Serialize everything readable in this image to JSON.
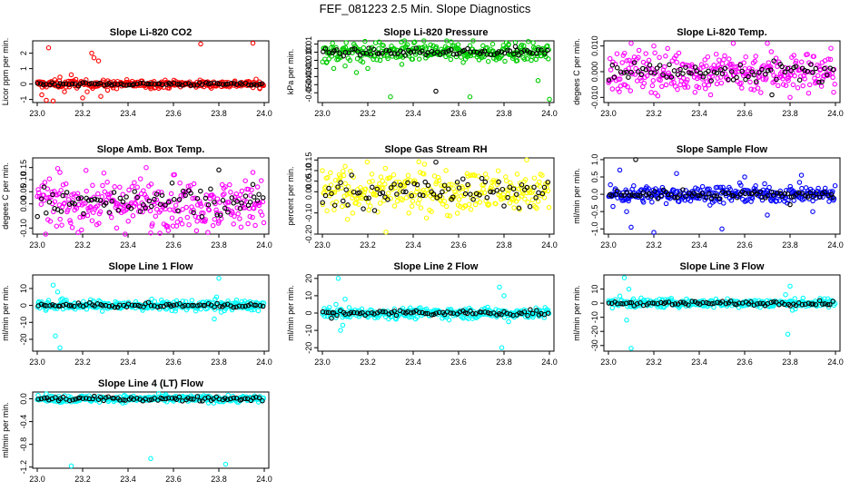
{
  "page": {
    "title": "FEF_081223  2.5 Min. Slope Diagnostics"
  },
  "chart_data": [
    {
      "type": "scatter",
      "title": "Slope Li-820 CO2",
      "xlabel": "",
      "ylabel": "Licor ppm per min.",
      "xlim": [
        22.98,
        24.02
      ],
      "ylim": [
        -1.2,
        2.8
      ],
      "xticks": [
        "23.0",
        "23.2",
        "23.4",
        "23.6",
        "23.8",
        "24.0"
      ],
      "yticks": [
        -1,
        0,
        1,
        2
      ],
      "series": [
        {
          "color": "#ff0000",
          "spread": 0.12,
          "outliers": [
            [
              23.05,
              2.35
            ],
            [
              23.02,
              -0.7
            ],
            [
              23.04,
              -1.05
            ],
            [
              23.07,
              -1.1
            ],
            [
              23.1,
              0.45
            ],
            [
              23.12,
              -0.5
            ],
            [
              23.15,
              0.6
            ],
            [
              23.17,
              0.3
            ],
            [
              23.2,
              -0.9
            ],
            [
              23.22,
              -0.5
            ],
            [
              23.24,
              2.0
            ],
            [
              23.25,
              1.7
            ],
            [
              23.27,
              1.5
            ],
            [
              23.28,
              -0.8
            ],
            [
              23.31,
              -0.4
            ],
            [
              23.35,
              -0.3
            ],
            [
              23.5,
              -0.3
            ],
            [
              23.72,
              2.6
            ],
            [
              23.95,
              2.65
            ],
            [
              23.98,
              -0.3
            ]
          ]
        },
        {
          "color": "#000000",
          "spread": 0.05,
          "outliers": []
        }
      ]
    },
    {
      "type": "scatter",
      "title": "Slope Li-820 Pressure",
      "xlabel": "",
      "ylabel": "kPa per min.",
      "xlim": [
        22.98,
        24.02
      ],
      "ylim": [
        -0.062,
        0.014
      ],
      "xticks": [
        "23.0",
        "23.2",
        "23.4",
        "23.6",
        "23.8",
        "24.0"
      ],
      "yticks": [
        "0.01",
        "0.00",
        "-0.01",
        "-0.02",
        "-0.03",
        "-0.04",
        "-0.05"
      ],
      "series": [
        {
          "color": "#00cc00",
          "spread": 0.006,
          "outliers": [
            [
              23.02,
              -0.012
            ],
            [
              23.05,
              -0.02
            ],
            [
              23.1,
              -0.017
            ],
            [
              23.15,
              -0.025
            ],
            [
              23.2,
              -0.02
            ],
            [
              23.3,
              -0.055
            ],
            [
              23.35,
              -0.015
            ],
            [
              23.5,
              0.005
            ],
            [
              23.55,
              0.005
            ],
            [
              23.65,
              -0.055
            ],
            [
              23.75,
              0.01
            ],
            [
              23.82,
              0.009
            ],
            [
              23.85,
              0.012
            ],
            [
              23.95,
              -0.035
            ],
            [
              24.0,
              -0.058
            ],
            [
              23.92,
              -0.01
            ]
          ]
        },
        {
          "color": "#000000",
          "spread": 0.002,
          "outliers": [
            [
              23.5,
              -0.048
            ],
            [
              23.85,
              0.007
            ]
          ]
        }
      ]
    },
    {
      "type": "scatter",
      "title": "Slope Li-820 Temp.",
      "xlabel": "",
      "ylabel": "degees C per min.",
      "xlim": [
        22.98,
        24.02
      ],
      "ylim": [
        -0.012,
        0.012
      ],
      "xticks": [
        "23.0",
        "23.2",
        "23.4",
        "23.6",
        "23.8",
        "24.0"
      ],
      "yticks": [
        "0.010",
        "0.000",
        "-0.010"
      ],
      "series": [
        {
          "color": "#ff00ff",
          "spread": 0.004,
          "outliers": [
            [
              23.1,
              0.011
            ],
            [
              23.2,
              0.01
            ],
            [
              23.35,
              -0.006
            ],
            [
              23.55,
              0.011
            ],
            [
              23.7,
              0.011
            ],
            [
              23.8,
              -0.01
            ],
            [
              23.45,
              -0.009
            ]
          ]
        },
        {
          "color": "#000000",
          "spread": 0.002,
          "outliers": [
            [
              23.72,
              -0.009
            ]
          ]
        }
      ]
    },
    {
      "type": "scatter",
      "title": "Slope Amb. Box Temp.",
      "xlabel": "",
      "ylabel": "degees C per min.",
      "xlim": [
        22.98,
        24.02
      ],
      "ylim": [
        -0.125,
        0.19
      ],
      "xticks": [
        "23.0",
        "23.2",
        "23.4",
        "23.6",
        "23.8",
        "24.0"
      ],
      "yticks": [
        "-0.10",
        "0.00",
        "0.05",
        "0.10",
        "0.15"
      ],
      "series": [
        {
          "color": "#ff00ff",
          "spread": 0.05,
          "outliers": [
            [
              23.48,
              0.15
            ],
            [
              23.35,
              -0.1
            ],
            [
              23.5,
              -0.12
            ],
            [
              23.95,
              0.13
            ],
            [
              23.6,
              0.12
            ],
            [
              23.1,
              0.13
            ]
          ]
        },
        {
          "color": "#000000",
          "spread": 0.035,
          "outliers": [
            [
              23.8,
              0.14
            ],
            [
              23.95,
              0.08
            ]
          ]
        }
      ]
    },
    {
      "type": "scatter",
      "title": "Slope Gas Stream RH",
      "xlabel": "",
      "ylabel": "percent per min.",
      "xlim": [
        22.98,
        24.02
      ],
      "ylim": [
        -0.2,
        0.16
      ],
      "xticks": [
        "23.0",
        "23.2",
        "23.4",
        "23.6",
        "23.8",
        "24.0"
      ],
      "yticks": [
        "-0.20",
        "-0.10",
        "0.00",
        "0.05",
        "0.10",
        "0.15"
      ],
      "series": [
        {
          "color": "#ffff00",
          "spread": 0.05,
          "outliers": [
            [
              23.28,
              -0.19
            ],
            [
              23.9,
              0.15
            ],
            [
              23.1,
              0.12
            ],
            [
              23.45,
              0.13
            ],
            [
              23.0,
              0.1
            ]
          ]
        },
        {
          "color": "#000000",
          "spread": 0.035,
          "outliers": [
            [
              23.5,
              0.14
            ]
          ]
        }
      ]
    },
    {
      "type": "scatter",
      "title": "Slope Sample Flow",
      "xlabel": "",
      "ylabel": "ml/min per min.",
      "xlim": [
        22.98,
        24.02
      ],
      "ylim": [
        -1.15,
        1.05
      ],
      "xticks": [
        "23.0",
        "23.2",
        "23.4",
        "23.6",
        "23.8",
        "24.0"
      ],
      "yticks": [
        "-1.0",
        "-0.5",
        "0.0",
        "0.5",
        "1.0"
      ],
      "series": [
        {
          "color": "#0000ff",
          "spread": 0.12,
          "outliers": [
            [
              23.05,
              0.7
            ],
            [
              23.08,
              -0.5
            ],
            [
              23.1,
              -0.95
            ],
            [
              23.2,
              -1.1
            ],
            [
              23.3,
              0.6
            ],
            [
              23.5,
              -1.0
            ],
            [
              23.6,
              0.5
            ],
            [
              23.7,
              -0.6
            ],
            [
              23.85,
              0.55
            ],
            [
              23.9,
              -0.5
            ],
            [
              23.02,
              -0.35
            ]
          ]
        },
        {
          "color": "#000000",
          "spread": 0.06,
          "outliers": [
            [
              23.12,
              1.0
            ],
            [
              23.8,
              -0.3
            ]
          ]
        }
      ]
    },
    {
      "type": "scatter",
      "title": "Slope Line 1 Flow",
      "xlabel": "",
      "ylabel": "ml/min per min.",
      "xlim": [
        22.98,
        24.02
      ],
      "ylim": [
        -27,
        18
      ],
      "xticks": [
        "23.0",
        "23.2",
        "23.4",
        "23.6",
        "23.8",
        "24.0"
      ],
      "yticks": [
        -20,
        -10,
        0,
        10
      ],
      "series": [
        {
          "color": "#00ffff",
          "spread": 1.5,
          "outliers": [
            [
              23.07,
              12
            ],
            [
              23.08,
              -18
            ],
            [
              23.1,
              -25
            ],
            [
              23.09,
              8
            ],
            [
              23.05,
              3
            ],
            [
              23.11,
              4
            ],
            [
              23.79,
              5
            ],
            [
              23.8,
              16
            ],
            [
              23.78,
              -8
            ],
            [
              23.81,
              -4
            ]
          ]
        },
        {
          "color": "#000000",
          "spread": 0.6,
          "outliers": []
        }
      ]
    },
    {
      "type": "scatter",
      "title": "Slope Line 2 Flow",
      "xlabel": "",
      "ylabel": "ml/min per min.",
      "xlim": [
        22.98,
        24.02
      ],
      "ylim": [
        -22,
        22
      ],
      "xticks": [
        "23.0",
        "23.2",
        "23.4",
        "23.6",
        "23.8",
        "24.0"
      ],
      "yticks": [
        -20,
        -10,
        0,
        10,
        20
      ],
      "series": [
        {
          "color": "#00ffff",
          "spread": 1.5,
          "outliers": [
            [
              23.07,
              20
            ],
            [
              23.08,
              -10
            ],
            [
              23.09,
              -7
            ],
            [
              23.1,
              8
            ],
            [
              23.06,
              5
            ],
            [
              23.78,
              15
            ],
            [
              23.79,
              -20
            ],
            [
              23.8,
              10
            ],
            [
              23.82,
              -5
            ]
          ]
        },
        {
          "color": "#000000",
          "spread": 0.8,
          "outliers": [
            [
              23.04,
              -3
            ]
          ]
        }
      ]
    },
    {
      "type": "scatter",
      "title": "Slope Line 3 Flow",
      "xlabel": "",
      "ylabel": "ml/min per min.",
      "xlim": [
        22.98,
        24.02
      ],
      "ylim": [
        -34,
        20
      ],
      "xticks": [
        "23.0",
        "23.2",
        "23.4",
        "23.6",
        "23.8",
        "24.0"
      ],
      "yticks": [
        -30,
        -20,
        -10,
        0,
        10
      ],
      "series": [
        {
          "color": "#00ffff",
          "spread": 1.5,
          "outliers": [
            [
              23.07,
              18
            ],
            [
              23.08,
              -12
            ],
            [
              23.1,
              -32
            ],
            [
              23.09,
              10
            ],
            [
              23.05,
              5
            ],
            [
              23.11,
              3
            ],
            [
              23.79,
              -22
            ],
            [
              23.8,
              12
            ],
            [
              23.81,
              -5
            ],
            [
              23.78,
              6
            ]
          ]
        },
        {
          "color": "#000000",
          "spread": 0.8,
          "outliers": []
        }
      ]
    },
    {
      "type": "scatter",
      "title": "Slope Line 4 (LT) Flow",
      "xlabel": "",
      "ylabel": "ml/min per min.",
      "xlim": [
        22.98,
        24.02
      ],
      "ylim": [
        -1.22,
        0.12
      ],
      "xticks": [
        "23.0",
        "23.2",
        "23.4",
        "23.6",
        "23.8",
        "24.0"
      ],
      "yticks": [
        "-1.2",
        "-0.8",
        "-0.4",
        "0.0"
      ],
      "series": [
        {
          "color": "#00ffff",
          "spread": 0.03,
          "outliers": [
            [
              23.15,
              -1.18
            ],
            [
              23.5,
              -1.05
            ],
            [
              23.83,
              -1.15
            ],
            [
              23.82,
              -0.05
            ],
            [
              23.1,
              -0.06
            ]
          ]
        },
        {
          "color": "#000000",
          "spread": 0.02,
          "outliers": []
        }
      ]
    }
  ]
}
